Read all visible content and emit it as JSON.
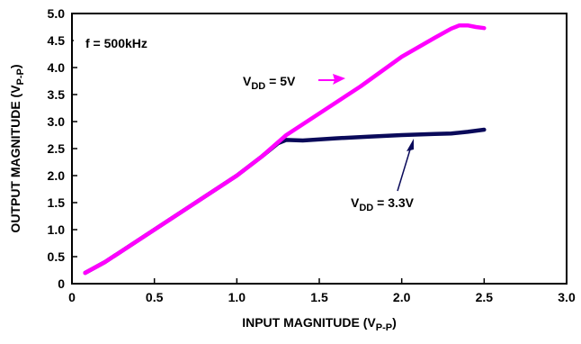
{
  "chart_data": {
    "type": "line",
    "xlabel": {
      "main": "INPUT MAGNITUDE (V",
      "sub": "P-P",
      "end": ")"
    },
    "ylabel": {
      "main": "OUTPUT MAGNITUDE (V",
      "sub": "P-P",
      "end": ")"
    },
    "xlim": [
      0,
      3.0
    ],
    "ylim": [
      0,
      5.0
    ],
    "x_ticks": [
      "0",
      "0.5",
      "1.0",
      "1.5",
      "2.0",
      "2.5",
      "3.0"
    ],
    "y_ticks": [
      "0",
      "0.5",
      "1.0",
      "1.5",
      "2.0",
      "2.5",
      "3.0",
      "3.5",
      "4.0",
      "4.5",
      "5.0"
    ],
    "grid": false,
    "series": [
      {
        "name": "VDD = 5V",
        "color": "#ff00ff",
        "x": [
          0.08,
          0.2,
          0.5,
          1.0,
          1.15,
          1.3,
          1.5,
          1.75,
          2.0,
          2.2,
          2.3,
          2.35,
          2.4,
          2.45,
          2.5
        ],
        "y": [
          0.2,
          0.4,
          1.0,
          2.0,
          2.35,
          2.75,
          3.15,
          3.65,
          4.2,
          4.55,
          4.72,
          4.78,
          4.78,
          4.75,
          4.73
        ]
      },
      {
        "name": "VDD = 3.3V",
        "color": "#0a0a5a",
        "x": [
          0.08,
          0.2,
          0.5,
          1.0,
          1.15,
          1.25,
          1.3,
          1.4,
          1.6,
          1.8,
          2.0,
          2.2,
          2.3,
          2.4,
          2.5
        ],
        "y": [
          0.2,
          0.4,
          1.0,
          2.0,
          2.35,
          2.6,
          2.66,
          2.65,
          2.69,
          2.72,
          2.75,
          2.77,
          2.78,
          2.81,
          2.85
        ]
      }
    ],
    "annotations": [
      {
        "id": "freq",
        "text": "f = 500kHz"
      },
      {
        "id": "vdd5",
        "main": "V",
        "sub": "DD",
        "end": " = 5V"
      },
      {
        "id": "vdd33",
        "main": "V",
        "sub": "DD",
        "end": " = 3.3V"
      }
    ]
  }
}
